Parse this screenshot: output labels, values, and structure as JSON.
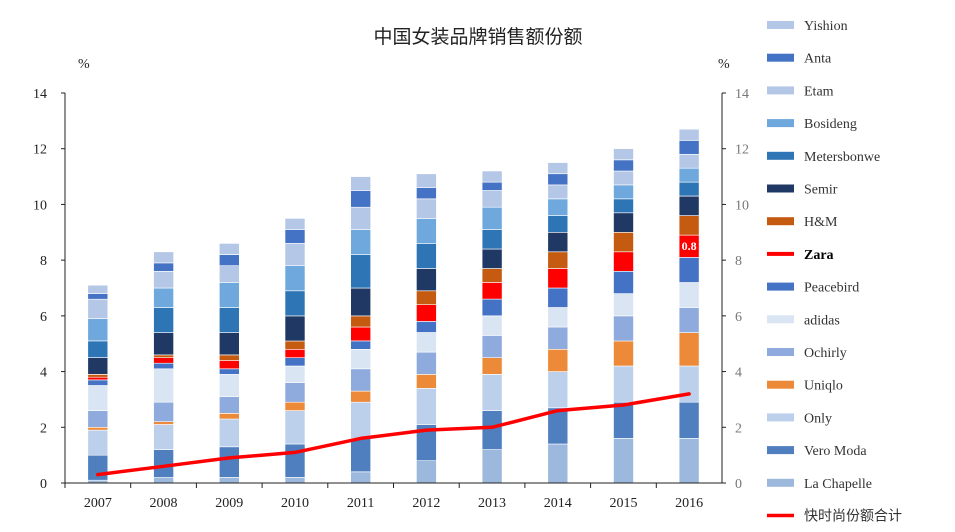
{
  "chart_data": {
    "type": "bar",
    "stacked": true,
    "title": "中国女装品牌销售额份额",
    "y_unit_left": "%",
    "y_unit_right": "%",
    "ylim": [
      0,
      14
    ],
    "yticks": [
      0,
      2,
      4,
      6,
      8,
      10,
      12,
      14
    ],
    "categories": [
      "2007",
      "2008",
      "2009",
      "2010",
      "2011",
      "2012",
      "2013",
      "2014",
      "2015",
      "2016"
    ],
    "series": [
      {
        "name": "La Chapelle",
        "color": "#9cb8dc",
        "values": [
          0.1,
          0.2,
          0.2,
          0.2,
          0.4,
          0.8,
          1.2,
          1.4,
          1.6,
          1.6
        ]
      },
      {
        "name": "Vero Moda",
        "color": "#4f7fbf",
        "values": [
          0.9,
          1.0,
          1.1,
          1.2,
          1.2,
          1.3,
          1.4,
          1.3,
          1.3,
          1.3
        ]
      },
      {
        "name": "Only",
        "color": "#bcd0ec",
        "values": [
          0.9,
          0.9,
          1.0,
          1.2,
          1.3,
          1.3,
          1.3,
          1.3,
          1.3,
          1.3
        ]
      },
      {
        "name": "Uniqlo",
        "color": "#ec8a3a",
        "values": [
          0.1,
          0.1,
          0.2,
          0.3,
          0.4,
          0.5,
          0.6,
          0.8,
          0.9,
          1.2
        ]
      },
      {
        "name": "Ochirly",
        "color": "#8faadc",
        "values": [
          0.6,
          0.7,
          0.6,
          0.7,
          0.8,
          0.8,
          0.8,
          0.8,
          0.9,
          0.9
        ]
      },
      {
        "name": "adidas",
        "color": "#dae5f4",
        "values": [
          0.9,
          1.2,
          0.8,
          0.6,
          0.7,
          0.7,
          0.7,
          0.7,
          0.8,
          0.9
        ]
      },
      {
        "name": "Peacebird",
        "color": "#4472c4",
        "values": [
          0.2,
          0.2,
          0.2,
          0.3,
          0.3,
          0.4,
          0.6,
          0.7,
          0.8,
          0.9
        ]
      },
      {
        "name": "Zara",
        "color": "#ff0000",
        "values": [
          0.1,
          0.2,
          0.3,
          0.3,
          0.5,
          0.6,
          0.6,
          0.7,
          0.7,
          0.8
        ]
      },
      {
        "name": "H&M",
        "color": "#c55a11",
        "values": [
          0.1,
          0.1,
          0.2,
          0.3,
          0.4,
          0.5,
          0.5,
          0.6,
          0.7,
          0.7
        ]
      },
      {
        "name": "Semir",
        "color": "#203864",
        "values": [
          0.6,
          0.8,
          0.8,
          0.9,
          1.0,
          0.8,
          0.7,
          0.7,
          0.7,
          0.7
        ]
      },
      {
        "name": "Metersbonwe",
        "color": "#2e75b6",
        "values": [
          0.6,
          0.9,
          0.9,
          0.9,
          1.2,
          0.9,
          0.7,
          0.6,
          0.5,
          0.5
        ]
      },
      {
        "name": "Bosideng",
        "color": "#6fa8dc",
        "values": [
          0.8,
          0.7,
          0.9,
          0.9,
          0.9,
          0.9,
          0.8,
          0.6,
          0.5,
          0.5
        ]
      },
      {
        "name": "Etam",
        "color": "#b4c7e7",
        "values": [
          0.7,
          0.6,
          0.6,
          0.8,
          0.8,
          0.7,
          0.6,
          0.5,
          0.5,
          0.5
        ]
      },
      {
        "name": "Anta",
        "color": "#4472c4",
        "values": [
          0.2,
          0.3,
          0.4,
          0.5,
          0.6,
          0.4,
          0.3,
          0.4,
          0.4,
          0.5
        ]
      },
      {
        "name": "Yishion",
        "color": "#b4c7e7",
        "values": [
          0.3,
          0.4,
          0.4,
          0.4,
          0.5,
          0.5,
          0.4,
          0.4,
          0.4,
          0.4
        ]
      }
    ],
    "line_series": {
      "name": "快时尚份额合计",
      "color": "#ff0000",
      "values": [
        0.3,
        0.6,
        0.9,
        1.1,
        1.6,
        1.9,
        2.0,
        2.6,
        2.8,
        3.2
      ]
    },
    "data_labels": [
      {
        "category": "2016",
        "series": "Zara",
        "text": "0.8"
      }
    ],
    "legend_position": "right",
    "grid": false
  }
}
